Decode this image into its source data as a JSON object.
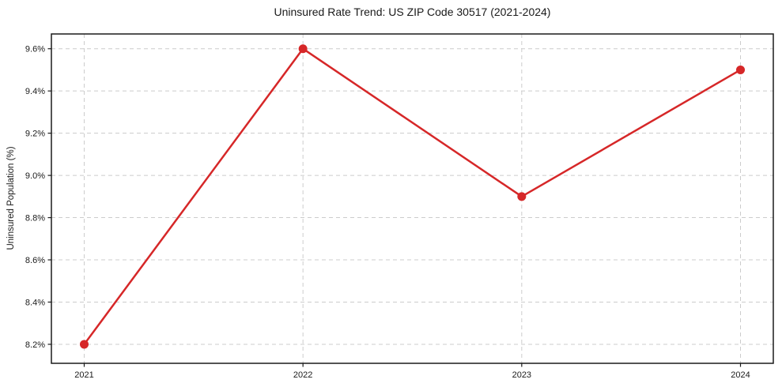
{
  "title": "Uninsured Rate Trend: US ZIP Code 30517 (2021-2024)",
  "chart_data": {
    "type": "line",
    "title": "Uninsured Rate Trend: US ZIP Code 30517 (2021-2024)",
    "xlabel": "",
    "ylabel": "Uninsured Population (%)",
    "x": [
      2021,
      2022,
      2023,
      2024
    ],
    "categories": [
      "2021",
      "2022",
      "2023",
      "2024"
    ],
    "series": [
      {
        "name": "Uninsured rate",
        "values": [
          8.2,
          9.6,
          8.9,
          9.5
        ]
      }
    ],
    "yticks": [
      8.2,
      8.4,
      8.6,
      8.8,
      9.0,
      9.2,
      9.4,
      9.6
    ],
    "ytick_labels": [
      "8.2%",
      "8.4%",
      "8.6%",
      "8.8%",
      "9.0%",
      "9.2%",
      "9.4%",
      "9.6%"
    ],
    "xtick_labels": [
      "2021",
      "2022",
      "2023",
      "2024"
    ],
    "ylim": [
      8.11,
      9.67
    ],
    "xlim": [
      2020.85,
      2024.15
    ],
    "grid": true,
    "grid_style": "dashed",
    "legend": "none",
    "colors": {
      "line": "#d62728",
      "marker": "#d62728",
      "grid": "#cccccc",
      "frame": "#1a1a1a",
      "text": "#1a1a1a",
      "background": "#ffffff"
    }
  }
}
